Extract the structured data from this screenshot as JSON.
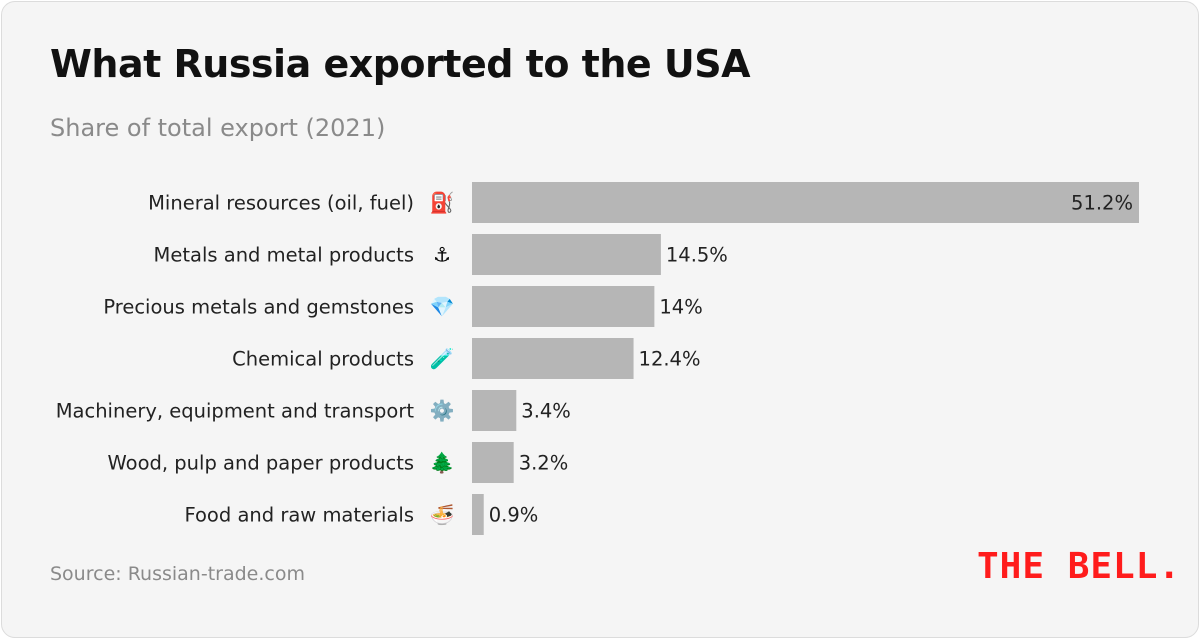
{
  "branding": {
    "logo_text": "THE BELL.",
    "logo_color": "#ff1c1c"
  },
  "source": "Source: Russian-trade.com",
  "chart_data": {
    "type": "bar",
    "orientation": "horizontal",
    "title": "What Russia exported to the USA",
    "subtitle": "Share of total export (2021)",
    "xlabel": "",
    "ylabel": "",
    "xlim": [
      0,
      51.2
    ],
    "grid": false,
    "legend": "none",
    "bar_color": "#b6b6b6",
    "categories": [
      "Mineral resources (oil, fuel)",
      "Metals and metal products",
      "Precious metals and gemstones",
      "Chemical products",
      "Machinery, equipment and transport",
      "Wood, pulp and paper products",
      "Food and raw materials"
    ],
    "icons": [
      "⛽",
      "⚓",
      "💎",
      "🧪",
      "⚙️",
      "🌲",
      "🍜"
    ],
    "values": [
      51.2,
      14.5,
      14,
      12.4,
      3.4,
      3.2,
      0.9
    ],
    "value_labels": [
      "51.2%",
      "14.5%",
      "14%",
      "12.4%",
      "3.4%",
      "3.2%",
      "0.9%"
    ]
  }
}
